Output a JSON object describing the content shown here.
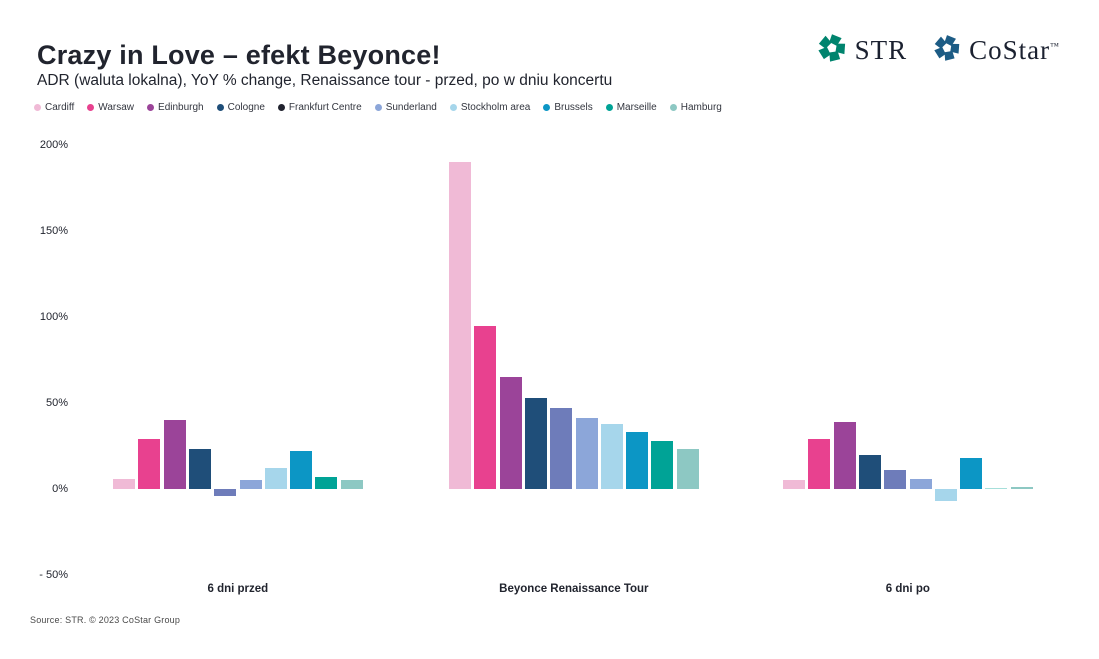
{
  "header": {
    "logos": {
      "str_label": "STR",
      "costar_label": "CoStar",
      "costar_tm": "™",
      "str_color": "#00846e",
      "costar_color": "#1d5c85"
    }
  },
  "footer": {
    "source": "Source: STR. © 2023 CoStar Group"
  },
  "chart_data": {
    "type": "bar",
    "title": "Crazy in Love – efekt Beyonce!",
    "subtitle": "ADR (waluta lokalna), YoY % change, Renaissance tour - przed, po w dniu koncertu",
    "categories": [
      "6 dni przed",
      "Beyonce Renaissance Tour",
      "6 dni po"
    ],
    "series": [
      {
        "name": "Cardiff",
        "color": "#f0bad6",
        "values": [
          6,
          190,
          5
        ]
      },
      {
        "name": "Warsaw",
        "color": "#e8418f",
        "values": [
          29,
          95,
          29
        ]
      },
      {
        "name": "Edinburgh",
        "color": "#9b4499",
        "values": [
          40,
          65,
          39
        ]
      },
      {
        "name": "Cologne",
        "color": "#1f4e79",
        "values": [
          23,
          53,
          20
        ]
      },
      {
        "name": "Frankfurt Centre",
        "color": "#6e7cba",
        "swatch": "#20222e",
        "values": [
          -4,
          47,
          11
        ]
      },
      {
        "name": "Sunderland",
        "color": "#8ca6d9",
        "values": [
          5,
          41,
          6
        ]
      },
      {
        "name": "Stockholm area",
        "color": "#a6d6eb",
        "values": [
          12,
          38,
          -7
        ]
      },
      {
        "name": "Brussels",
        "color": "#0c96c5",
        "values": [
          22,
          33,
          18
        ]
      },
      {
        "name": "Marseille",
        "color": "#00a396",
        "values": [
          7,
          28,
          0
        ]
      },
      {
        "name": "Hamburg",
        "color": "#8dc8c3",
        "values": [
          5,
          23,
          1
        ]
      }
    ],
    "y_ticks": [
      "200%",
      "150%",
      "100%",
      "50%",
      "0%",
      "- 50%"
    ],
    "y_tick_values": [
      200,
      150,
      100,
      50,
      0,
      -50
    ],
    "ylim": [
      -50,
      200
    ],
    "ylabel": "",
    "xlabel": "",
    "grid": false,
    "legend_position": "top"
  }
}
